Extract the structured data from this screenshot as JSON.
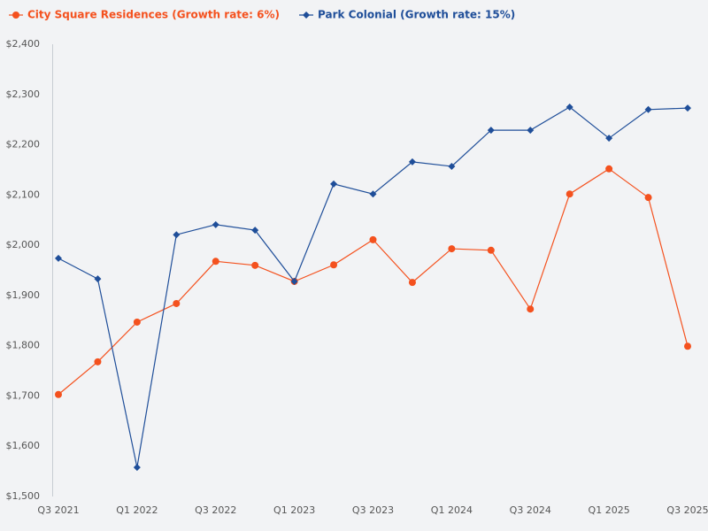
{
  "chart_data": {
    "type": "line",
    "categories": [
      "Q3 2021",
      null,
      "Q1 2022",
      null,
      "Q3 2022",
      null,
      "Q1 2023",
      null,
      "Q3 2023",
      null,
      "Q1 2024",
      null,
      "Q3 2024",
      null,
      "Q1 2025",
      null,
      "Q3 2025"
    ],
    "series": [
      {
        "name": "City Square Residences (Growth rate: 6%)",
        "color": "#f4511e",
        "marker": "circle",
        "values": [
          1703,
          1768,
          1847,
          1884,
          1968,
          1960,
          1928,
          1961,
          2011,
          1926,
          1993,
          1990,
          1873,
          2102,
          2152,
          2095,
          1799
        ]
      },
      {
        "name": "Park Colonial (Growth rate: 15%)",
        "color": "#1f4e99",
        "marker": "diamond",
        "values": [
          1974,
          1933,
          1558,
          2021,
          2041,
          2030,
          1928,
          2122,
          2102,
          2166,
          2157,
          2229,
          2229,
          2275,
          2213,
          2270,
          2273
        ]
      }
    ],
    "ylim": [
      1500,
      2400
    ],
    "yticks": [
      {
        "value": 1500,
        "label": "$1,500"
      },
      {
        "value": 1600,
        "label": "$1,600"
      },
      {
        "value": 1700,
        "label": "$1,700"
      },
      {
        "value": 1800,
        "label": "$1,800"
      },
      {
        "value": 1900,
        "label": "$1,900"
      },
      {
        "value": 2000,
        "label": "$2,000"
      },
      {
        "value": 2100,
        "label": "$2,100"
      },
      {
        "value": 2200,
        "label": "$2,200"
      },
      {
        "value": 2300,
        "label": "$2,300"
      },
      {
        "value": 2400,
        "label": "$2,400"
      }
    ],
    "legend": "top-left"
  }
}
